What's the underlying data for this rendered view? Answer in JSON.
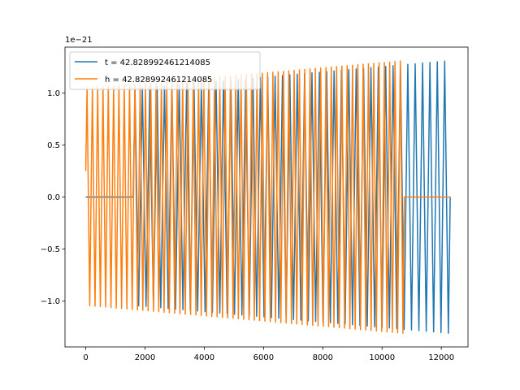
{
  "chart_data": {
    "type": "line",
    "title": "",
    "xlabel": "",
    "ylabel": "",
    "offset_text": "1e−21",
    "xlim": [
      -700,
      12900
    ],
    "ylim": [
      -1.44,
      1.44
    ],
    "xticks": [
      0,
      2000,
      4000,
      6000,
      8000,
      10000,
      12000
    ],
    "xtick_labels": [
      "0",
      "2000",
      "4000",
      "6000",
      "8000",
      "10000",
      "12000"
    ],
    "yticks": [
      -1.0,
      -0.5,
      0.0,
      0.5,
      1.0
    ],
    "ytick_labels": [
      "−1.0",
      "−0.5",
      "0.0",
      "0.5",
      "1.0"
    ],
    "grid": false,
    "legend_placement": "upper-left",
    "series": [
      {
        "name": "t = 42.828992461214085",
        "color": "#1f77b4",
        "zero_until": 1600,
        "oscillation_start": 1600,
        "oscillation_end": 12300,
        "cycles": 43,
        "amplitude_start": 1.04,
        "amplitude_end": 1.31,
        "end_value": 0.0
      },
      {
        "name": "h = 42.828992461214085",
        "color": "#ff7f0e",
        "start_value": 0.25,
        "oscillation_start": 0,
        "oscillation_end": 10750,
        "cycles": 60,
        "amplitude_start": 1.04,
        "amplitude_end": 1.31,
        "zero_from": 10750,
        "zero_until": 12300
      }
    ]
  }
}
